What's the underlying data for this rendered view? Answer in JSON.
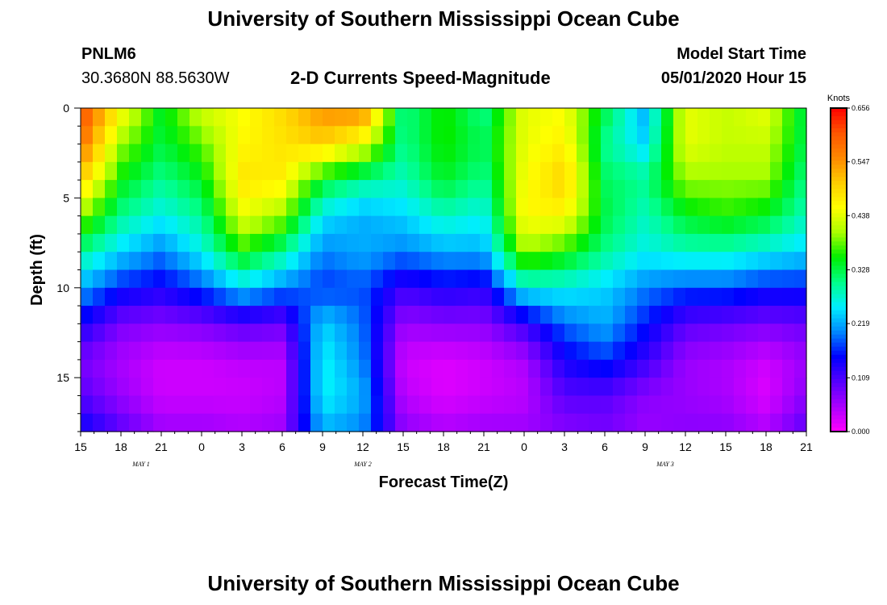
{
  "header": {
    "title": "University of Southern Mississippi Ocean Cube",
    "station_id": "PNLM6",
    "station_coords": "30.3680N 88.5630W",
    "chart_title": "2-D Currents Speed-Magnitude",
    "model_start_label": "Model Start Time",
    "model_start_value": "05/01/2020 Hour 15"
  },
  "footer": {
    "title": "University of Southern Mississippi Ocean Cube"
  },
  "chart_data": {
    "type": "heatmap",
    "title": "2-D Currents Speed-Magnitude",
    "xlabel": "Forecast Time(Z)",
    "ylabel": "Depth (ft)",
    "x_range_hours": [
      0,
      54
    ],
    "ylim": [
      0,
      18
    ],
    "y_ticks": [
      0,
      5,
      10,
      15
    ],
    "x_tick_labels": [
      "15",
      "18",
      "21",
      "0",
      "3",
      "6",
      "9",
      "12",
      "15",
      "18",
      "21",
      "0",
      "3",
      "6",
      "9",
      "12",
      "15",
      "18",
      "21"
    ],
    "date_labels": [
      {
        "label": "MAY 1",
        "hour": 4.5
      },
      {
        "label": "MAY 2",
        "hour": 21
      },
      {
        "label": "MAY 3",
        "hour": 43.5
      }
    ],
    "colorbar": {
      "unit": "Knots",
      "min": 0,
      "max": 0.656,
      "tick_labels": [
        "0.656",
        "0.547",
        "0.438",
        "0.328",
        "0.219",
        "0.109",
        "0.000"
      ],
      "colors": [
        "#ff00ff",
        "#aa00ff",
        "#5500ff",
        "#0000ff",
        "#0088ff",
        "#00eeff",
        "#00ff88",
        "#00ee00",
        "#aaff00",
        "#ffff00",
        "#ffcc00",
        "#ff8800",
        "#ff5500",
        "#ff0000"
      ]
    },
    "profiles": {
      "columns_hours": [
        0,
        3,
        6,
        9,
        12,
        15,
        18,
        21,
        24,
        27,
        30,
        33,
        36,
        39,
        42,
        45,
        48,
        51,
        54
      ],
      "depth_levels_ft": [
        0,
        2,
        4,
        6,
        8,
        10,
        12,
        14,
        16,
        18
      ],
      "speed_knots": [
        [
          0.62,
          0.58,
          0.5,
          0.4,
          0.3,
          0.22,
          0.14,
          0.08,
          0.1,
          0.15
        ],
        [
          0.46,
          0.4,
          0.35,
          0.3,
          0.24,
          0.16,
          0.08,
          0.05,
          0.06,
          0.1
        ],
        [
          0.34,
          0.33,
          0.3,
          0.26,
          0.2,
          0.14,
          0.07,
          0.03,
          0.03,
          0.06
        ],
        [
          0.43,
          0.38,
          0.34,
          0.3,
          0.26,
          0.18,
          0.08,
          0.03,
          0.03,
          0.06
        ],
        [
          0.45,
          0.46,
          0.48,
          0.44,
          0.36,
          0.24,
          0.1,
          0.04,
          0.03,
          0.05
        ],
        [
          0.49,
          0.48,
          0.47,
          0.4,
          0.3,
          0.2,
          0.09,
          0.04,
          0.04,
          0.06
        ],
        [
          0.55,
          0.5,
          0.34,
          0.25,
          0.2,
          0.17,
          0.24,
          0.26,
          0.26,
          0.22
        ],
        [
          0.56,
          0.44,
          0.3,
          0.22,
          0.22,
          0.18,
          0.19,
          0.2,
          0.22,
          0.2
        ],
        [
          0.3,
          0.3,
          0.28,
          0.24,
          0.2,
          0.12,
          0.06,
          0.03,
          0.04,
          0.07
        ],
        [
          0.36,
          0.36,
          0.34,
          0.28,
          0.22,
          0.14,
          0.07,
          0.02,
          0.02,
          0.05
        ],
        [
          0.3,
          0.32,
          0.3,
          0.26,
          0.22,
          0.13,
          0.07,
          0.03,
          0.03,
          0.06
        ],
        [
          0.44,
          0.44,
          0.45,
          0.46,
          0.4,
          0.26,
          0.12,
          0.05,
          0.04,
          0.06
        ],
        [
          0.45,
          0.47,
          0.5,
          0.46,
          0.36,
          0.26,
          0.19,
          0.14,
          0.1,
          0.07
        ],
        [
          0.33,
          0.3,
          0.32,
          0.33,
          0.3,
          0.24,
          0.22,
          0.17,
          0.1,
          0.08
        ],
        [
          0.22,
          0.24,
          0.3,
          0.28,
          0.26,
          0.2,
          0.16,
          0.12,
          0.07,
          0.06
        ],
        [
          0.44,
          0.44,
          0.4,
          0.34,
          0.28,
          0.18,
          0.1,
          0.06,
          0.06,
          0.07
        ],
        [
          0.42,
          0.42,
          0.4,
          0.36,
          0.28,
          0.18,
          0.09,
          0.05,
          0.05,
          0.07
        ],
        [
          0.44,
          0.42,
          0.4,
          0.34,
          0.26,
          0.16,
          0.08,
          0.03,
          0.02,
          0.05
        ],
        [
          0.32,
          0.32,
          0.3,
          0.28,
          0.24,
          0.16,
          0.09,
          0.06,
          0.07,
          0.1
        ]
      ]
    }
  }
}
